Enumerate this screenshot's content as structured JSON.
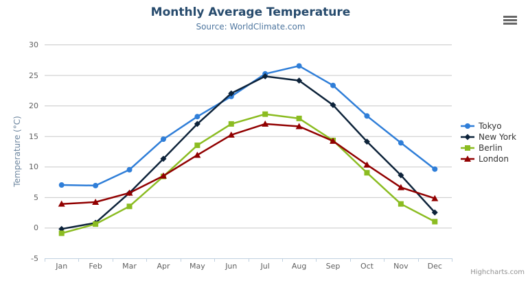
{
  "credits": {
    "label": "Highcharts.com"
  },
  "export_menu": {
    "icon": "hamburger-icon"
  },
  "colors": {
    "title": "#274b6d",
    "subtitle": "#4d759e",
    "grid": "#C8C8C8",
    "axis_line": "#C0D0E0",
    "axis_label": "#606060",
    "y_axis_title": "#6D869F",
    "legend_text": "#333333",
    "credits": "#909090",
    "menu_icon": "#666666"
  },
  "chart_data": {
    "type": "line",
    "title": "Monthly Average Temperature",
    "subtitle": "Source: WorldClimate.com",
    "xlabel": "",
    "ylabel": "Temperature (°C)",
    "ylim": [
      -5,
      30
    ],
    "yticks": [
      -5,
      0,
      5,
      10,
      15,
      20,
      25,
      30
    ],
    "grid": true,
    "legend_position": "right",
    "categories": [
      "Jan",
      "Feb",
      "Mar",
      "Apr",
      "May",
      "Jun",
      "Jul",
      "Aug",
      "Sep",
      "Oct",
      "Nov",
      "Dec"
    ],
    "series": [
      {
        "name": "Tokyo",
        "color": "#2f7ed8",
        "marker": "circle",
        "values": [
          7.0,
          6.9,
          9.5,
          14.5,
          18.2,
          21.5,
          25.2,
          26.5,
          23.3,
          18.3,
          13.9,
          9.6
        ]
      },
      {
        "name": "New York",
        "color": "#0d233a",
        "marker": "diamond",
        "values": [
          -0.2,
          0.8,
          5.7,
          11.3,
          17.0,
          22.0,
          24.8,
          24.1,
          20.1,
          14.1,
          8.6,
          2.5
        ]
      },
      {
        "name": "Berlin",
        "color": "#8bbc21",
        "marker": "square",
        "values": [
          -0.9,
          0.6,
          3.5,
          8.4,
          13.5,
          17.0,
          18.6,
          17.9,
          14.3,
          9.0,
          3.9,
          1.0
        ]
      },
      {
        "name": "London",
        "color": "#910000",
        "marker": "triangle",
        "values": [
          3.9,
          4.2,
          5.7,
          8.5,
          11.9,
          15.2,
          17.0,
          16.6,
          14.2,
          10.3,
          6.6,
          4.8
        ]
      }
    ]
  }
}
